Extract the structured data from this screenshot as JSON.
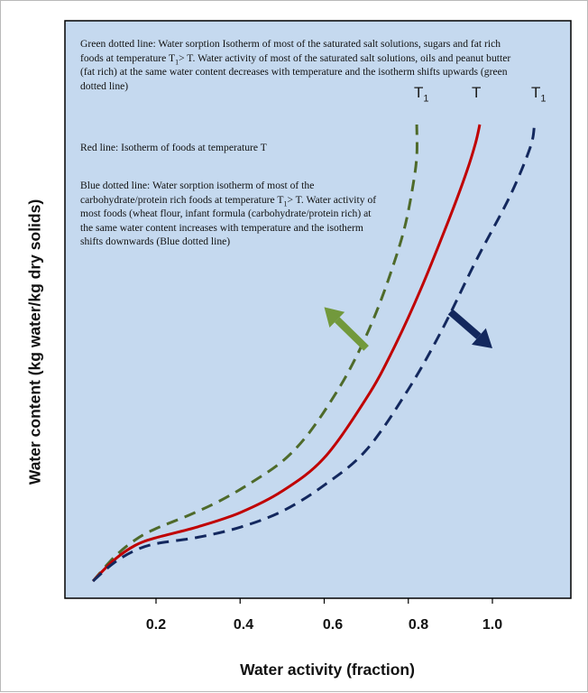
{
  "chart_data": {
    "type": "line",
    "xlabel": "Water activity (fraction)",
    "ylabel": "Water content (kg water/kg dry solids)",
    "xlim": [
      0,
      1.2
    ],
    "ylim": [
      0,
      1
    ],
    "grid": false,
    "x_ticks": [
      "0.2",
      "0.4",
      "0.6",
      "0.8",
      "1.0"
    ],
    "x_tick_values": [
      0.2,
      0.4,
      0.6,
      0.8,
      1.0
    ],
    "background": "#c5d9ef",
    "series": [
      {
        "key": "T1_low",
        "label_main": "T",
        "label_sub": "1",
        "color": "#4e6a2a",
        "style": "dashed",
        "points": [
          [
            0.05,
            0.0
          ],
          [
            0.1,
            0.052
          ],
          [
            0.15,
            0.09
          ],
          [
            0.2,
            0.115
          ],
          [
            0.28,
            0.145
          ],
          [
            0.35,
            0.175
          ],
          [
            0.42,
            0.212
          ],
          [
            0.5,
            0.262
          ],
          [
            0.56,
            0.32
          ],
          [
            0.62,
            0.4
          ],
          [
            0.67,
            0.48
          ],
          [
            0.72,
            0.58
          ],
          [
            0.76,
            0.68
          ],
          [
            0.79,
            0.77
          ],
          [
            0.81,
            0.86
          ],
          [
            0.82,
            0.93
          ],
          [
            0.82,
            1.0
          ]
        ]
      },
      {
        "key": "T",
        "label_main": "T",
        "label_sub": "",
        "color": "#c00000",
        "style": "solid",
        "points": [
          [
            0.05,
            0.0
          ],
          [
            0.1,
            0.046
          ],
          [
            0.15,
            0.078
          ],
          [
            0.2,
            0.095
          ],
          [
            0.3,
            0.119
          ],
          [
            0.4,
            0.15
          ],
          [
            0.5,
            0.197
          ],
          [
            0.6,
            0.27
          ],
          [
            0.7,
            0.4
          ],
          [
            0.76,
            0.5
          ],
          [
            0.83,
            0.64
          ],
          [
            0.9,
            0.8
          ],
          [
            0.94,
            0.9
          ],
          [
            0.96,
            0.96
          ],
          [
            0.97,
            1.0
          ]
        ]
      },
      {
        "key": "T1_high",
        "label_main": "T",
        "label_sub": "1",
        "color": "#13285e",
        "style": "dashed",
        "points": [
          [
            0.05,
            0.0
          ],
          [
            0.1,
            0.04
          ],
          [
            0.15,
            0.067
          ],
          [
            0.2,
            0.082
          ],
          [
            0.3,
            0.096
          ],
          [
            0.4,
            0.118
          ],
          [
            0.5,
            0.153
          ],
          [
            0.6,
            0.21
          ],
          [
            0.7,
            0.287
          ],
          [
            0.8,
            0.42
          ],
          [
            0.88,
            0.55
          ],
          [
            0.96,
            0.7
          ],
          [
            1.04,
            0.84
          ],
          [
            1.09,
            0.95
          ],
          [
            1.1,
            1.0
          ]
        ]
      }
    ],
    "arrows": [
      {
        "color": "#72993c",
        "from": [
          0.7,
          0.51
        ],
        "to": [
          0.6,
          0.6
        ]
      },
      {
        "color": "#13285e",
        "from": [
          0.9,
          0.59
        ],
        "to": [
          1.0,
          0.51
        ]
      }
    ],
    "annotations": {
      "green": {
        "before_1": "Green dotted line: Water sorption Isotherm of most of the saturated salt solutions, sugars and fat rich foods at temperature T",
        "sub_1": "1",
        "after_1": "> T.  Water activity of most of the saturated salt solutions, oils and peanut butter (fat rich) at the same water content decreases with temperature and the isotherm shifts upwards (green dotted line)"
      },
      "red": {
        "text": "Red line: Isotherm of foods at temperature T"
      },
      "blue": {
        "before_1": "Blue dotted line: Water sorption isotherm  of  most of the carbohydrate/protein rich foods at temperature T",
        "sub_1": "1",
        "after_1": "> T. Water activity of most foods (wheat flour, infant formula (carbohydrate/protein rich) at the same water content increases with temperature and the isotherm shifts downwards (Blue dotted line)"
      }
    }
  }
}
